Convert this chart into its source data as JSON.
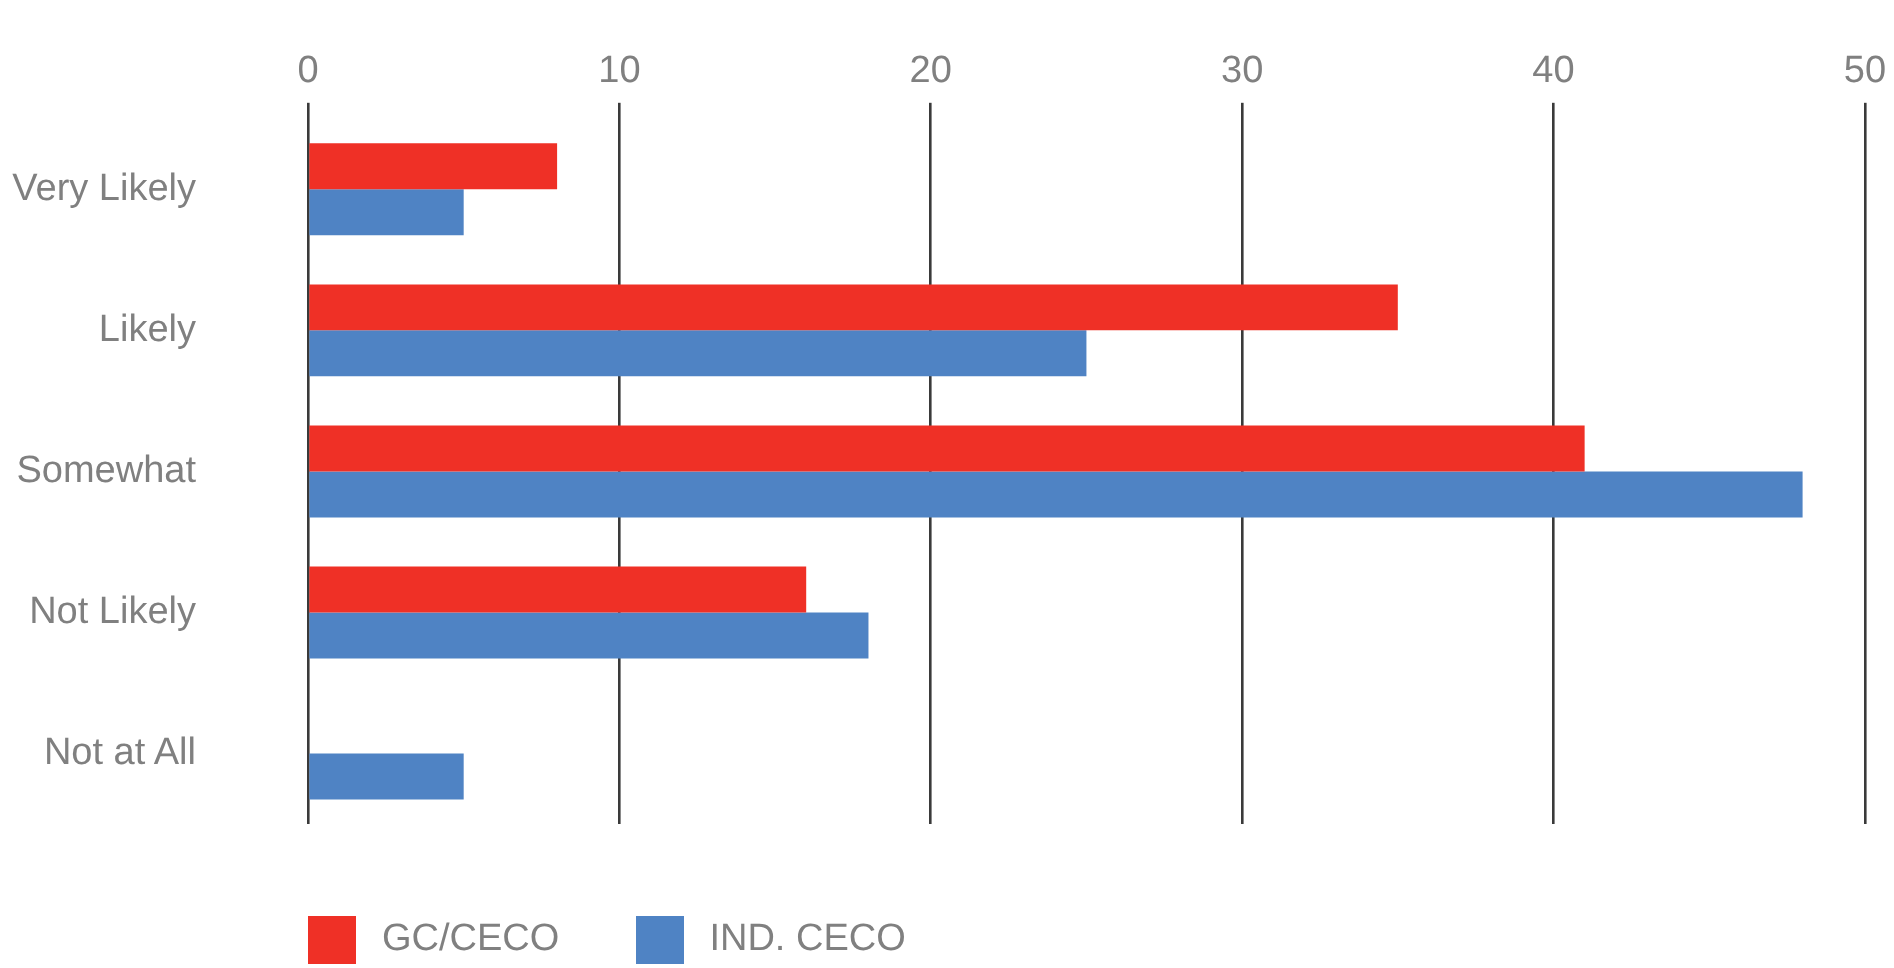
{
  "chart_data": {
    "type": "bar",
    "orientation": "horizontal",
    "categories": [
      "Very Likely",
      "Likely",
      "Somewhat",
      "Not Likely",
      "Not at All"
    ],
    "series": [
      {
        "name": "GC/CECO",
        "color": "#ef3026",
        "values": [
          8,
          35,
          41,
          16,
          0
        ]
      },
      {
        "name": "IND. CECO",
        "color": "#4f83c4",
        "values": [
          5,
          25,
          48,
          18,
          5
        ]
      }
    ],
    "xlim": [
      0,
      50
    ],
    "xticks": [
      0,
      10,
      20,
      30,
      40,
      50
    ],
    "grid": "x",
    "legend": "bottom left"
  }
}
